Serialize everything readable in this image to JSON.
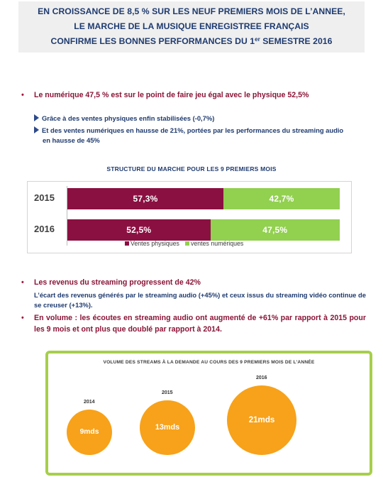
{
  "header": {
    "line1": "EN CROISSANCE DE 8,5 % SUR LES NEUF PREMIERS MOIS DE L’ANNEE,",
    "line2": "LE MARCHE DE LA MUSIQUE ENREGISTREE FRANÇAIS",
    "line3_prefix": "CONFIRME LES BONNES PERFORMANCES DU 1",
    "line3_sup": "er",
    "line3_suffix": " SEMESTRE 2016"
  },
  "bullet_symbol": "•",
  "bullet1": "Le numérique 47,5 % est sur le point de faire jeu égal avec le physique 52,5%",
  "sub1": "Grâce à des ventes physiques enfin stabilisées (-0,7%)",
  "sub2_line1": "Et des ventes numériques en hausse de 21%, portées par les performances du streaming audio",
  "sub2_line2": "en hausse de 45%",
  "chart_data": {
    "type": "bar",
    "orientation": "horizontal",
    "stacked": true,
    "normalized_100": true,
    "title": "STRUCTURE DU MARCHE POUR LES 9 PREMIERS MOIS",
    "categories": [
      "2015",
      "2016"
    ],
    "series": [
      {
        "name": "Ventes physiques",
        "color": "#8b1042",
        "values": [
          57.3,
          52.5
        ],
        "labels": [
          "57,3%",
          "52,5%"
        ]
      },
      {
        "name": "ventes numériques",
        "color": "#92d050",
        "values": [
          42.7,
          47.5
        ],
        "labels": [
          "42,7%",
          "47,5%"
        ]
      }
    ],
    "legend_position": "bottom",
    "grid": false
  },
  "section2": {
    "bullet_a": "Les revenus du streaming progressent de 42%",
    "bullet_a_detail": "L’écart des revenus générés par le streaming audio (+45%) et ceux issus du streaming vidéo continue de se creuser (+13%).",
    "bullet_b": "En volume : les écoutes en streaming audio ont augmenté de +61% par rapport à 2015 pour les 9 mois et ont plus que doublé par rapport à 2014."
  },
  "streams_chart": {
    "title": "VOLUME DES STREAMS À LA DEMANDE AU COURS DES 9 PREMIERS MOIS DE L’ANNÉE",
    "color": "#f7a21a",
    "border_color": "#a6cf4b",
    "items": [
      {
        "year": "2014",
        "value": 9,
        "label": "9mds"
      },
      {
        "year": "2015",
        "value": 13,
        "label": "13mds"
      },
      {
        "year": "2016",
        "value": 21,
        "label": "21mds"
      }
    ]
  }
}
